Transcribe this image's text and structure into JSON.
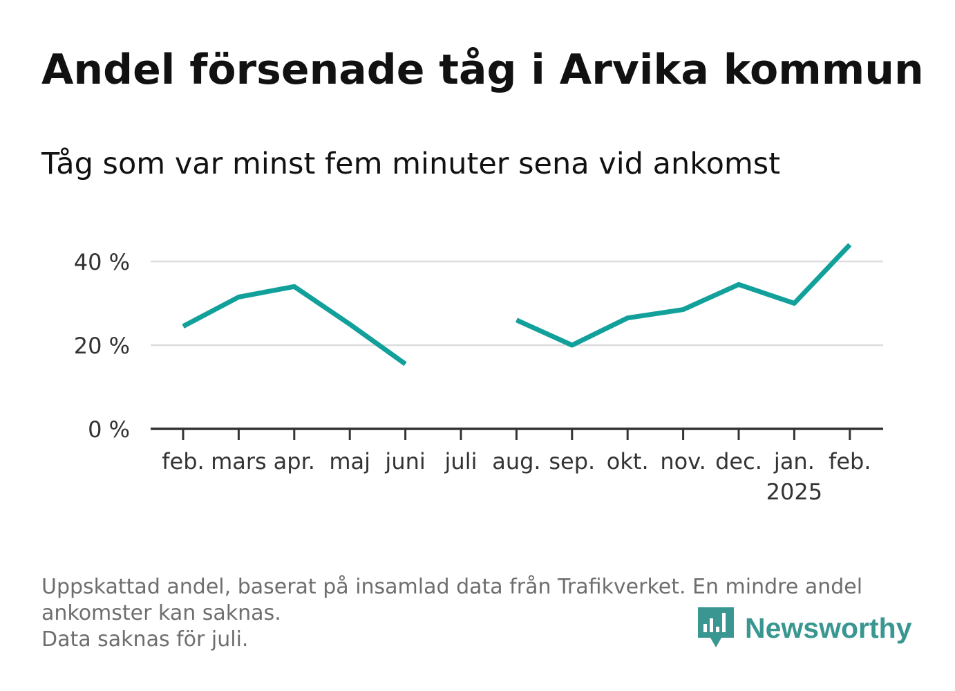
{
  "title": "Andel försenade tåg i Arvika kommun",
  "subtitle": "Tåg som var minst fem minuter sena vid ankomst",
  "footnote": {
    "line1": "Uppskattad andel, baserat på insamlad data från Trafikverket. En mindre andel",
    "line2": "ankomster kan saknas.",
    "line3": "Data saknas för juli."
  },
  "brand": {
    "name": "Newsworthy",
    "icon": "newsworthy-logo-icon",
    "color": "#3a9690"
  },
  "chart_data": {
    "type": "line",
    "categories": [
      "feb.",
      "mars",
      "apr.",
      "maj",
      "juni",
      "juli",
      "aug.",
      "sep.",
      "okt.",
      "nov.",
      "dec.",
      "jan.",
      "feb."
    ],
    "year_label": {
      "index": 11,
      "text": "2025"
    },
    "series": [
      {
        "values": [
          24.5,
          31.5,
          34,
          25,
          15.5,
          null,
          26,
          20,
          26.5,
          28.5,
          34.5,
          30,
          44
        ],
        "color": "#12a09b"
      }
    ],
    "y_ticks": [
      0,
      20,
      40
    ],
    "y_tick_labels": [
      "0 %",
      "20 %",
      "40 %"
    ],
    "ylim": [
      0,
      48
    ],
    "xlabel": "",
    "ylabel": "",
    "grid": true
  }
}
